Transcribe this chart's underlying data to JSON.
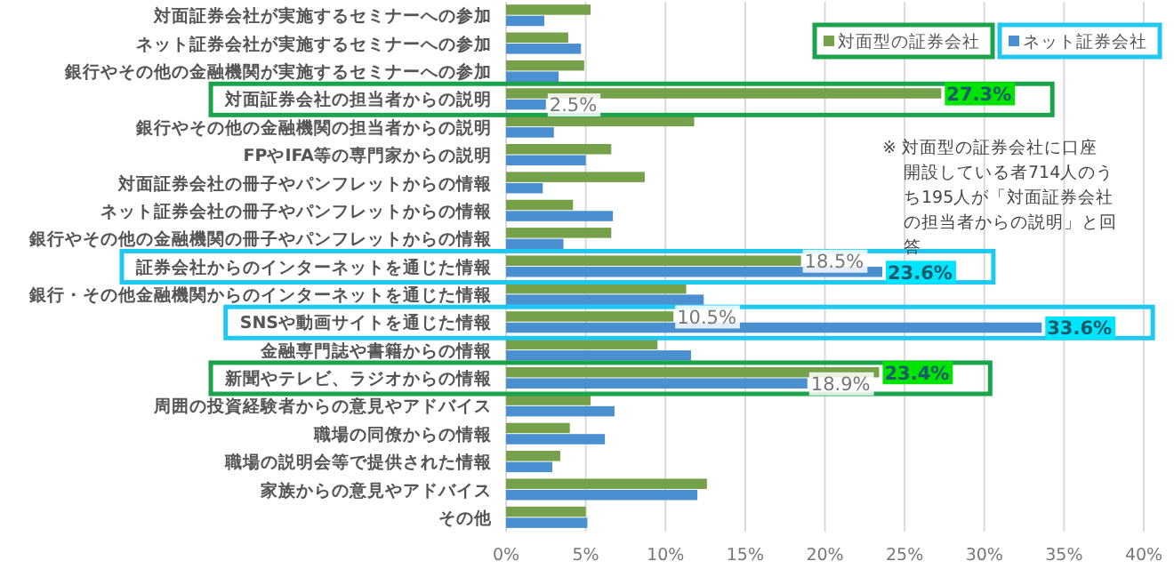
{
  "chart_data": {
    "type": "bar",
    "orientation": "horizontal",
    "categories": [
      "対面証券会社が実施するセミナーへの参加",
      "ネット証券会社が実施するセミナーへの参加",
      "銀行やその他の金融機関が実施するセミナーへの参加",
      "対面証券会社の担当者からの説明",
      "銀行やその他の金融機関の担当者からの説明",
      "FPやIFA等の専門家からの説明",
      "対面証券会社の冊子やパンフレットからの情報",
      "ネット証券会社の冊子やパンフレットからの情報",
      "銀行やその他の金融機関の冊子やパンフレットからの情報",
      "証券会社からのインターネットを通じた情報",
      "銀行・その他金融機関からのインターネットを通じた情報",
      "SNSや動画サイトを通じた情報",
      "金融専門誌や書籍からの情報",
      "新聞やテレビ、ラジオからの情報",
      "周囲の投資経験者からの意見やアドバイス",
      "職場の同僚からの情報",
      "職場の説明会等で提供された情報",
      "家族からの意見やアドバイス",
      "その他"
    ],
    "series": [
      {
        "name": "対面型の証券会社",
        "color": "#77a04a",
        "values": [
          5.3,
          3.9,
          4.9,
          27.3,
          11.8,
          6.6,
          8.7,
          4.2,
          6.6,
          18.5,
          11.3,
          10.5,
          9.5,
          23.4,
          5.3,
          4.0,
          3.4,
          12.6,
          5.0
        ],
        "value_labels": [
          null,
          null,
          null,
          "27.3%",
          null,
          null,
          null,
          null,
          null,
          "18.5%",
          null,
          "10.5%",
          null,
          "23.4%",
          null,
          null,
          null,
          null,
          null
        ]
      },
      {
        "name": "ネット証券会社",
        "color": "#4a8fd0",
        "values": [
          2.4,
          4.7,
          3.3,
          2.5,
          3.0,
          5.0,
          2.3,
          6.7,
          3.6,
          23.6,
          12.4,
          33.6,
          11.6,
          18.9,
          6.8,
          6.2,
          2.9,
          12.0,
          5.1
        ],
        "value_labels": [
          null,
          null,
          null,
          "2.5%",
          null,
          null,
          null,
          null,
          null,
          "23.6%",
          null,
          "33.6%",
          null,
          "18.9%",
          null,
          null,
          null,
          null,
          null
        ]
      }
    ],
    "xlim": [
      0,
      40
    ],
    "xticks": [
      {
        "value": 0,
        "label": "0%"
      },
      {
        "value": 5,
        "label": "5%"
      },
      {
        "value": 10,
        "label": "10%"
      },
      {
        "value": 15,
        "label": "15%"
      },
      {
        "value": 20,
        "label": "20%"
      },
      {
        "value": 25,
        "label": "25%"
      },
      {
        "value": 30,
        "label": "30%"
      },
      {
        "value": 35,
        "label": "35%"
      },
      {
        "value": 40,
        "label": "40%"
      }
    ],
    "grid": "x",
    "legend": "top right",
    "annotations": [
      "※ 対面型の証券会社に口座開設している者714人のうち195人が「対面証券会社の担当者からの説明」と回答"
    ]
  }
}
